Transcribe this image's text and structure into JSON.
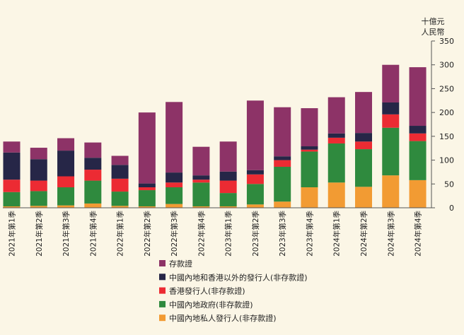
{
  "chart_data": {
    "type": "bar",
    "stacked": true,
    "title": "",
    "ylabel": "十億元 人民幣",
    "ylabel_lines": [
      "十億元",
      "人民幣"
    ],
    "xlabel": "",
    "ylim": [
      0,
      350
    ],
    "yticks": [
      0,
      50,
      100,
      150,
      200,
      250,
      300,
      350
    ],
    "grid": false,
    "legend_position": "bottom-center",
    "categories": [
      "2021年第1季",
      "2021年第2季",
      "2021年第3季",
      "2021年第4季",
      "2022年第1季",
      "2022年第2季",
      "2022年第3季",
      "2022年第4季",
      "2023年第1季",
      "2023年第2季",
      "2023年第3季",
      "2023年第4季",
      "2024年第1季",
      "2024年第2季",
      "2024年第3季",
      "2024年第4季"
    ],
    "series": [
      {
        "name": "中國內地私人發行人(非存款證)",
        "color": "#f29b33",
        "values": [
          3,
          4,
          5,
          9,
          4,
          3,
          8,
          3,
          3,
          7,
          13,
          43,
          53,
          44,
          68,
          58
        ]
      },
      {
        "name": "中國內地政府(非存款證)",
        "color": "#2f8a3e",
        "values": [
          30,
          31,
          38,
          48,
          30,
          34,
          35,
          50,
          28,
          43,
          73,
          75,
          82,
          79,
          100,
          82
        ]
      },
      {
        "name": "香港發行人(非存款證)",
        "color": "#ec2b33",
        "values": [
          26,
          22,
          23,
          23,
          27,
          6,
          10,
          6,
          26,
          20,
          14,
          4,
          12,
          16,
          28,
          16
        ]
      },
      {
        "name": "中國內地和香港以外的發行人(非存款證)",
        "color": "#262647",
        "values": [
          57,
          45,
          54,
          25,
          29,
          8,
          21,
          9,
          19,
          9,
          8,
          7,
          9,
          18,
          25,
          16
        ]
      },
      {
        "name": "存款證",
        "color": "#8d3367",
        "values": [
          23,
          24,
          26,
          32,
          19,
          149,
          148,
          60,
          63,
          146,
          103,
          80,
          76,
          86,
          79,
          123
        ]
      }
    ],
    "legend_order": [
      4,
      3,
      2,
      1,
      0
    ]
  }
}
